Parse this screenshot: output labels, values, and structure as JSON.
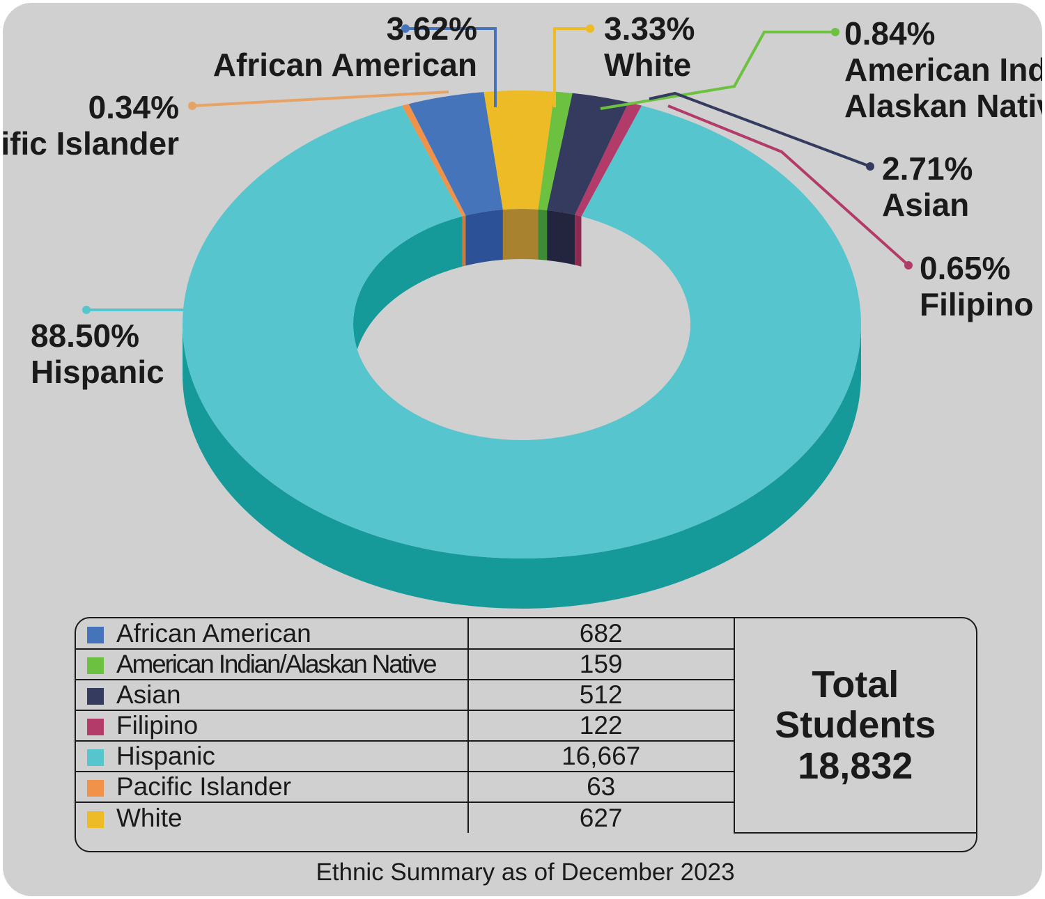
{
  "chart_data": {
    "type": "pie",
    "title": "",
    "categories": [
      "Hispanic",
      "Pacific Islander",
      "African American",
      "White",
      "American Indian/Alaskan Native",
      "Asian",
      "Filipino"
    ],
    "series": [
      {
        "values": [
          88.5,
          0.34,
          3.62,
          3.33,
          0.84,
          2.71,
          0.65
        ]
      }
    ],
    "slice_labels": {
      "Hispanic": "88.50%",
      "Pacific Islander": "0.34%",
      "African American": "3.62%",
      "White": "3.33%",
      "American Indian/Alaskan Native": "0.84%",
      "Asian": "2.71%",
      "Filipino": "0.65%"
    },
    "colors": {
      "African American": "#4674bb",
      "American Indian/Alaskan Native": "#6dc141",
      "Asian": "#343b5e",
      "Filipino": "#b23b6a",
      "Hispanic": "#56c5ce",
      "Pacific Islander": "#f0924a",
      "White": "#ecbb25"
    },
    "side_colors": {
      "African American": "#2c5196",
      "American Indian/Alaskan Native": "#3f8a35",
      "Asian": "#23253e",
      "Filipino": "#8e2a52",
      "Hispanic": "#169a99",
      "Pacific Islander": "#d07a3a",
      "White": "#a8822e"
    },
    "leader_colors": {
      "African American": "#4674bb",
      "American Indian/Alaskan Native": "#6dc141",
      "Asian": "#343b5e",
      "Filipino": "#b23b6a",
      "Hispanic": "#56c5ce",
      "Pacific Islander": "#e7a366",
      "White": "#ecbb25"
    },
    "style": "3d-donut"
  },
  "callouts": [
    {
      "key": "african_american",
      "pct": "3.62%",
      "lines": [
        "African American"
      ]
    },
    {
      "key": "white",
      "pct": "3.33%",
      "lines": [
        "White"
      ]
    },
    {
      "key": "american_indian",
      "pct": "0.84%",
      "lines": [
        "American Indian/",
        "Alaskan Native"
      ]
    },
    {
      "key": "pacific_islander",
      "pct": "0.34%",
      "lines": [
        "Pacific Islander"
      ]
    },
    {
      "key": "asian",
      "pct": "2.71%",
      "lines": [
        "Asian"
      ]
    },
    {
      "key": "filipino",
      "pct": "0.65%",
      "lines": [
        "Filipino"
      ]
    },
    {
      "key": "hispanic",
      "pct": "88.50%",
      "lines": [
        "Hispanic"
      ]
    }
  ],
  "table": {
    "rows": [
      {
        "name": "African American",
        "value": "682",
        "color": "#4674bb"
      },
      {
        "name": "American Indian/Alaskan Native",
        "value": "159",
        "color": "#6dc141"
      },
      {
        "name": "Asian",
        "value": "512",
        "color": "#343b5e"
      },
      {
        "name": "Filipino",
        "value": "122",
        "color": "#b23b6a"
      },
      {
        "name": "Hispanic",
        "value": "16,667",
        "color": "#56c5ce"
      },
      {
        "name": "Pacific Islander",
        "value": "63",
        "color": "#f0924a"
      },
      {
        "name": "White",
        "value": "627",
        "color": "#ecbb25"
      }
    ],
    "total_line1": "Total",
    "total_line2": "Students",
    "total_value": "18,832"
  },
  "footer": "Ethnic Summary as of December 2023"
}
